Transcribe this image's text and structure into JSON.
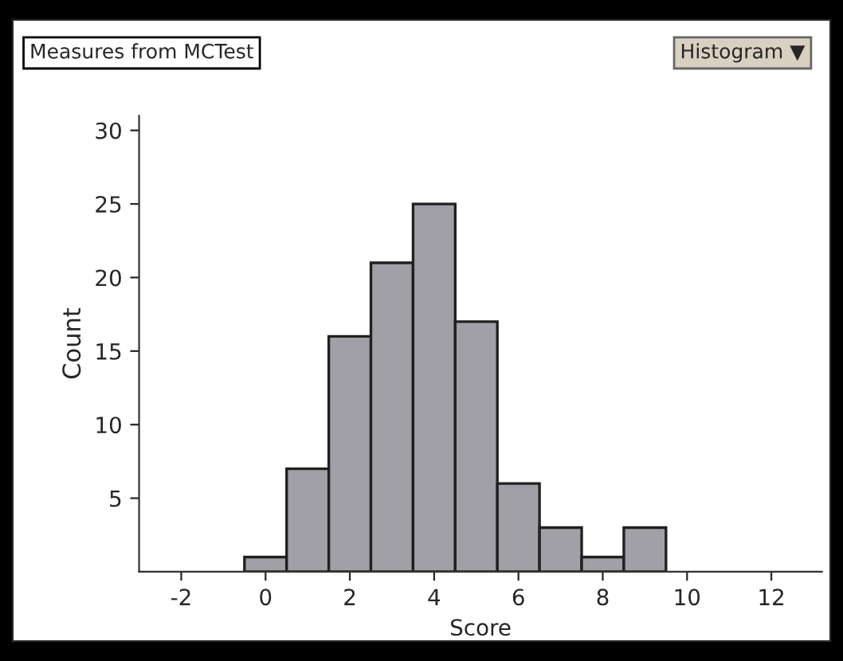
{
  "chart_data": {
    "type": "histogram",
    "title": "Measures from MCTest",
    "annotations": [
      "Histogram ▼"
    ],
    "xlabel": "Score",
    "ylabel": "Count",
    "bins": [
      -0.5,
      0.5,
      1.5,
      2.5,
      3.5,
      4.5,
      5.5,
      6.5,
      7.5,
      8.5,
      9.5
    ],
    "values": [
      1,
      7,
      16,
      21,
      25,
      17,
      6,
      3,
      1,
      3
    ],
    "color": "#a0a0a6",
    "xlim": [
      -3,
      13.2
    ],
    "ylim": [
      0,
      31
    ],
    "xticks": [
      -2,
      0,
      2,
      4,
      6,
      8,
      10,
      12
    ],
    "yticks": [
      5,
      10,
      15,
      20,
      25,
      30
    ],
    "grid": false
  }
}
